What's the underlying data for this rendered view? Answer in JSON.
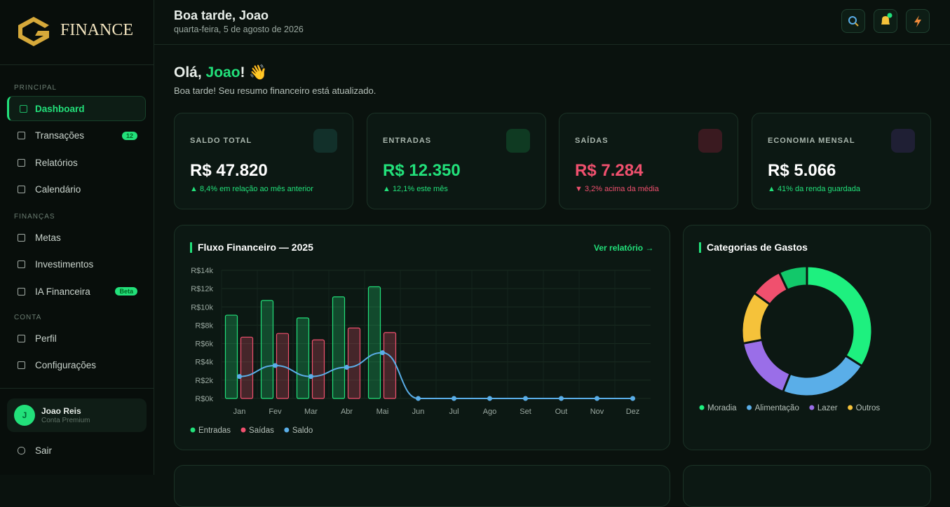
{
  "sidebar": {
    "brand": "FINANCE",
    "sections": [
      {
        "title": "PRINCIPAL",
        "items": [
          {
            "label": "Dashboard"
          },
          {
            "label": "Transações",
            "badge": "12"
          },
          {
            "label": "Relatórios"
          },
          {
            "label": "Calendário"
          }
        ]
      },
      {
        "title": "FINANÇAS",
        "items": [
          {
            "label": "Metas"
          },
          {
            "label": "Investimentos"
          },
          {
            "label": "IA Financeira",
            "badge": "Beta"
          }
        ]
      },
      {
        "title": "CONTA",
        "items": [
          {
            "label": "Perfil"
          },
          {
            "label": "Configurações"
          }
        ]
      }
    ],
    "user": {
      "initial": "J",
      "name": "Joao Reis",
      "plan": "Conta Premium"
    },
    "logout": "Sair"
  },
  "header": {
    "title": "Boa tarde, Joao",
    "date": "quarta-feira, 5 de agosto de 2026"
  },
  "greeting": {
    "prefix": "Olá, ",
    "name": "Joao",
    "suffix": "! 👋",
    "subtitle": "Boa tarde! Seu resumo financeiro está atualizado."
  },
  "cards": [
    {
      "label": "SALDO TOTAL",
      "value": "R$ 47.820",
      "note": "▲ 8,4% em relação ao mês anterior"
    },
    {
      "label": "ENTRADAS",
      "value": "R$ 12.350",
      "note": "▲ 12,1% este mês"
    },
    {
      "label": "SAÍDAS",
      "value": "R$ 7.284",
      "note": "▼ 3,2% acima da média"
    },
    {
      "label": "ECONOMIA MENSAL",
      "value": "R$ 5.066",
      "note": "▲ 41% da renda guardada"
    }
  ],
  "flow_link": "Ver relatório →",
  "chart_data": [
    {
      "type": "bar",
      "title": "Fluxo Financeiro — 2025",
      "categories": [
        "Jan",
        "Fev",
        "Mar",
        "Abr",
        "Mai",
        "Jun",
        "Jul",
        "Ago",
        "Set",
        "Out",
        "Nov",
        "Dez"
      ],
      "series": [
        {
          "name": "Entradas",
          "color": "#22e07a",
          "values": [
            9100,
            10700,
            8800,
            11100,
            12200,
            0,
            0,
            0,
            0,
            0,
            0,
            0
          ]
        },
        {
          "name": "Saídas",
          "color": "#f0506e",
          "values": [
            6700,
            7100,
            6400,
            7700,
            7200,
            0,
            0,
            0,
            0,
            0,
            0,
            0
          ]
        },
        {
          "name": "Saldo",
          "color": "#5aaee8",
          "type": "line",
          "values": [
            2400,
            3600,
            2400,
            3400,
            5000,
            0,
            0,
            0,
            0,
            0,
            0,
            0
          ]
        }
      ],
      "ylim": [
        0,
        14000
      ],
      "yticks": [
        {
          "value": 0,
          "label": "R$0k"
        },
        {
          "value": 2000,
          "label": "R$2k"
        },
        {
          "value": 4000,
          "label": "R$4k"
        },
        {
          "value": 6000,
          "label": "R$6k"
        },
        {
          "value": 8000,
          "label": "R$8k"
        },
        {
          "value": 10000,
          "label": "R$10k"
        },
        {
          "value": 12000,
          "label": "R$12k"
        },
        {
          "value": 14000,
          "label": "R$14k"
        }
      ],
      "grid": true
    },
    {
      "type": "pie",
      "title": "Categorias de Gastos",
      "categories": [
        "Moradia",
        "Alimentação",
        "Lazer",
        "Outros",
        null,
        null
      ],
      "values": [
        34,
        22,
        16,
        13,
        8,
        7
      ],
      "colors": [
        "#1ef07f",
        "#5aaee8",
        "#9a6ee8",
        "#f5c23a",
        "#f0506e",
        "#12c86a"
      ],
      "donut": true
    }
  ]
}
